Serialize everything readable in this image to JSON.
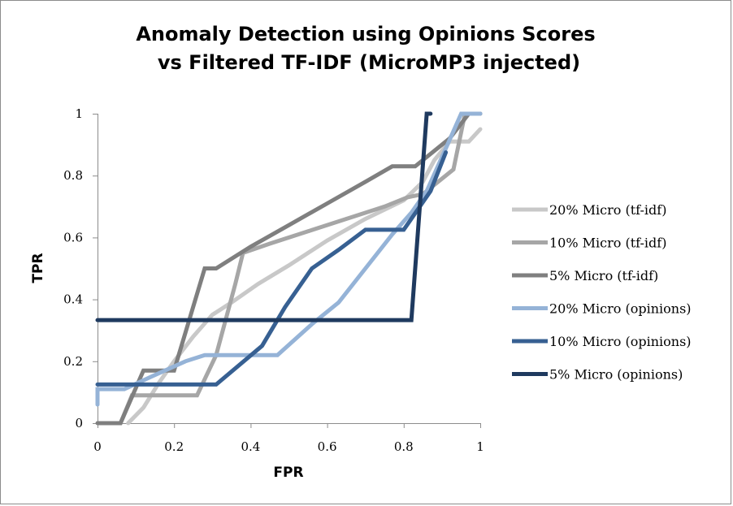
{
  "chart_data": {
    "type": "line",
    "title": "Anomaly Detection using Opinions Scores",
    "subtitle": "vs Filtered TF-IDF (MicroMP3 injected)",
    "xlabel": "FPR",
    "ylabel": "TPR",
    "xlim": [
      0,
      1
    ],
    "ylim": [
      0,
      1
    ],
    "xticks": [
      "0",
      "0.2",
      "0.4",
      "0.6",
      "0.8",
      "1"
    ],
    "yticks": [
      "0",
      "0.2",
      "0.4",
      "0.6",
      "0.8",
      "1"
    ],
    "grid": "none",
    "legend_position": "right",
    "series": [
      {
        "name": "20% Micro (tf-idf)",
        "color": "#c8c8c8",
        "x": [
          0.08,
          0.12,
          0.16,
          0.2,
          0.25,
          0.3,
          0.35,
          0.42,
          0.5,
          0.6,
          0.7,
          0.8,
          0.85,
          0.88,
          0.92,
          0.97,
          1.0
        ],
        "y": [
          0.0,
          0.05,
          0.13,
          0.2,
          0.28,
          0.35,
          0.39,
          0.45,
          0.51,
          0.59,
          0.66,
          0.72,
          0.78,
          0.85,
          0.91,
          0.91,
          0.95
        ]
      },
      {
        "name": "10% Micro (tf-idf)",
        "color": "#a6a6a6",
        "x": [
          0.06,
          0.09,
          0.24,
          0.26,
          0.31,
          0.36,
          0.38,
          0.45,
          0.55,
          0.65,
          0.75,
          0.81,
          0.85,
          0.88,
          0.93,
          0.96,
          0.96,
          1.0
        ],
        "y": [
          0.0,
          0.09,
          0.09,
          0.09,
          0.22,
          0.45,
          0.55,
          0.58,
          0.62,
          0.66,
          0.7,
          0.73,
          0.74,
          0.77,
          0.82,
          1.0,
          1.0,
          1.0
        ]
      },
      {
        "name": "5% Micro (tf-idf)",
        "color": "#7f7f7f",
        "x": [
          0.0,
          0.06,
          0.12,
          0.2,
          0.28,
          0.31,
          0.4,
          0.5,
          0.6,
          0.7,
          0.77,
          0.83,
          0.88,
          0.92,
          0.97,
          1.0
        ],
        "y": [
          0.0,
          0.0,
          0.17,
          0.17,
          0.5,
          0.5,
          0.57,
          0.64,
          0.71,
          0.78,
          0.83,
          0.83,
          0.88,
          0.92,
          1.0,
          1.0
        ]
      },
      {
        "name": "20% Micro (opinions)",
        "color": "#95b3d7",
        "x": [
          0.0,
          0.0,
          0.07,
          0.14,
          0.23,
          0.28,
          0.36,
          0.47,
          0.56,
          0.63,
          0.7,
          0.77,
          0.82,
          0.86,
          0.9,
          0.95,
          0.97,
          1.0
        ],
        "y": [
          0.06,
          0.11,
          0.11,
          0.15,
          0.2,
          0.22,
          0.22,
          0.22,
          0.32,
          0.39,
          0.5,
          0.61,
          0.68,
          0.75,
          0.86,
          1.0,
          1.0,
          1.0
        ]
      },
      {
        "name": "10% Micro (opinions)",
        "color": "#376092",
        "x": [
          0.0,
          0.15,
          0.31,
          0.43,
          0.49,
          0.56,
          0.63,
          0.7,
          0.8,
          0.87,
          0.91
        ],
        "y": [
          0.125,
          0.125,
          0.125,
          0.25,
          0.375,
          0.5,
          0.56,
          0.625,
          0.625,
          0.75,
          0.875
        ]
      },
      {
        "name": "5% Micro (opinions)",
        "color": "#1f3a5f",
        "x": [
          0.0,
          0.82,
          0.86,
          0.87
        ],
        "y": [
          0.333,
          0.333,
          1.0,
          1.0
        ]
      }
    ]
  }
}
